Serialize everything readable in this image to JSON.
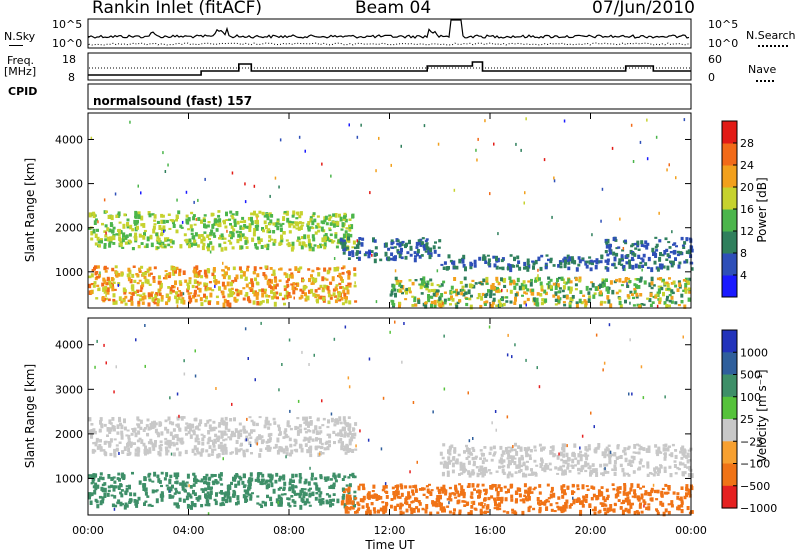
{
  "header": {
    "station": "Rankin Inlet (fitACF)",
    "beam": "Beam 04",
    "date": "07/Jun/2010"
  },
  "top_panels": {
    "nsky_label": "N.Sky",
    "nsky_ticks": [
      "10^5",
      "10^0"
    ],
    "nsearch_label": "N.Search",
    "nsearch_ticks": [
      "10^5",
      "10^0"
    ],
    "freq_label": "Freq.",
    "freq_unit": "[MHz]",
    "freq_ticks": [
      "18",
      "8"
    ],
    "nave_label": "Nave",
    "nave_ticks": [
      "60",
      "0"
    ],
    "cpid_label": "CPID",
    "cpid_value": "normalsound (fast) 157"
  },
  "chart_data": [
    {
      "type": "heatmap",
      "title": "",
      "xlabel": "",
      "ylabel": "Slant Range [km]",
      "x_range_hours": [
        0,
        24
      ],
      "xtick_hours": [
        0,
        4,
        8,
        12,
        16,
        20,
        24
      ],
      "ylim": [
        180,
        4600
      ],
      "yticks": [
        1000,
        2000,
        3000,
        4000
      ],
      "colorbar": {
        "label": "Power [dB]",
        "ticks": [
          "4",
          "8",
          "12",
          "16",
          "20",
          "24",
          "28"
        ],
        "colors": [
          "#1a1aff",
          "#2e4fb8",
          "#2f7f5c",
          "#4bb54b",
          "#c6d22e",
          "#f2a01c",
          "#f26a18",
          "#e21b16"
        ]
      },
      "echo_regions": [
        {
          "t": [
            0.0,
            10.6
          ],
          "r": [
            1550,
            2400
          ],
          "level": [
            12,
            20
          ]
        },
        {
          "t": [
            0.0,
            10.6
          ],
          "r": [
            300,
            1150
          ],
          "level": [
            16,
            28
          ]
        },
        {
          "t": [
            10.0,
            14.0
          ],
          "r": [
            1300,
            1800
          ],
          "level": [
            4,
            12
          ]
        },
        {
          "t": [
            12.0,
            24.0
          ],
          "r": [
            250,
            900
          ],
          "level": [
            8,
            24
          ]
        },
        {
          "t": [
            14.0,
            24.0
          ],
          "r": [
            1100,
            1400
          ],
          "level": [
            4,
            12
          ]
        },
        {
          "t": [
            20.5,
            24.0
          ],
          "r": [
            1400,
            1800
          ],
          "level": [
            4,
            12
          ]
        }
      ]
    },
    {
      "type": "heatmap",
      "title": "",
      "xlabel": "Time UT",
      "ylabel": "Slant Range [km]",
      "x_range_hours": [
        0,
        24
      ],
      "xtick_labels": [
        "00:00",
        "04:00",
        "08:00",
        "12:00",
        "16:00",
        "20:00",
        "00:00"
      ],
      "xtick_hours": [
        0,
        4,
        8,
        12,
        16,
        20,
        24
      ],
      "ylim": [
        180,
        4600
      ],
      "yticks": [
        1000,
        2000,
        3000,
        4000
      ],
      "colorbar": {
        "label": "Velocity [m s⁻¹]",
        "ticks": [
          "1000",
          "500",
          "100",
          "25",
          "−25",
          "−100",
          "−500",
          "−1000"
        ],
        "colors": [
          "#2233bb",
          "#2f5f9c",
          "#3e8f68",
          "#56c23b",
          "#c8c8c8",
          "#f7a030",
          "#f07316",
          "#e52020"
        ]
      },
      "echo_regions": [
        {
          "t": [
            0.0,
            10.6
          ],
          "r": [
            1550,
            2400
          ],
          "velocity": [
            -25,
            25
          ]
        },
        {
          "t": [
            0.0,
            10.6
          ],
          "r": [
            400,
            1150
          ],
          "velocity": [
            100,
            500
          ]
        },
        {
          "t": [
            10.0,
            24.0
          ],
          "r": [
            250,
            900
          ],
          "velocity": [
            -500,
            -100
          ]
        },
        {
          "t": [
            14.0,
            24.0
          ],
          "r": [
            1100,
            1800
          ],
          "velocity": [
            -25,
            25
          ]
        }
      ]
    }
  ]
}
